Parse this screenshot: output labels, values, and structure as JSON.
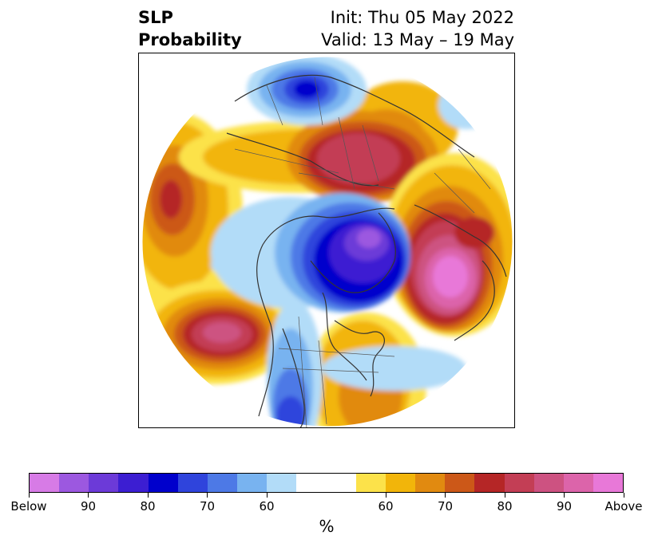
{
  "header": {
    "title_line1": "SLP",
    "title_line2": "Probability",
    "init": "Init: Thu 05 May 2022",
    "valid": "Valid: 13 May – 19 May"
  },
  "colorbar": {
    "colors": [
      "#d77be6",
      "#9c58e0",
      "#6c3ad8",
      "#3c1ed2",
      "#0000cc",
      "#2f44dc",
      "#4d79e6",
      "#78b3f0",
      "#b2dcf8",
      "#ffffff",
      "#ffffff",
      "#fce24a",
      "#f2b50a",
      "#e18a10",
      "#cc5818",
      "#b52626",
      "#c33e55",
      "#cd5281",
      "#dc64aa",
      "#e878d8"
    ],
    "tick_labels": [
      "Below",
      "90",
      "80",
      "70",
      "60",
      "60",
      "70",
      "80",
      "90",
      "Above"
    ],
    "unit": "%"
  }
}
